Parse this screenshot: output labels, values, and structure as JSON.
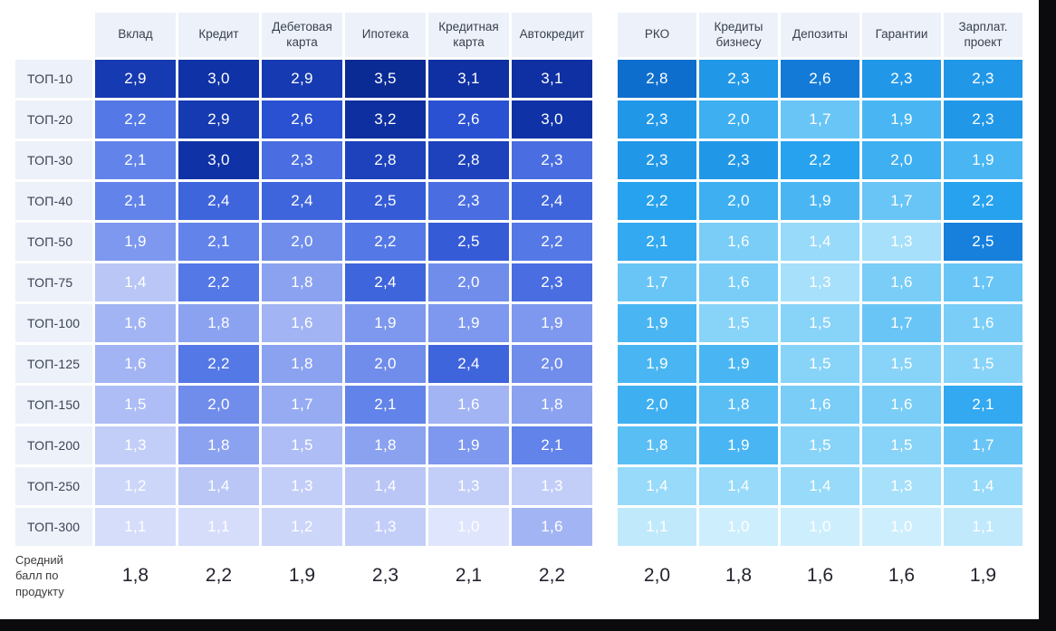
{
  "chart_data": {
    "type": "heatmap",
    "title": "",
    "decimal_separator": ",",
    "row_labels": [
      "ТОП-10",
      "ТОП-20",
      "ТОП-30",
      "ТОП-40",
      "ТОП-50",
      "ТОП-75",
      "ТОП-100",
      "ТОП-125",
      "ТОП-150",
      "ТОП-200",
      "ТОП-250",
      "ТОП-300"
    ],
    "average_row_label": "Средний балл по продукту",
    "groups": [
      {
        "name": "retail-products",
        "columns": [
          "Вклад",
          "Кредит",
          "Дебетовая карта",
          "Ипотека",
          "Кредитная карта",
          "Автокредит"
        ],
        "values": [
          [
            2.9,
            3.0,
            2.9,
            3.5,
            3.1,
            3.1
          ],
          [
            2.2,
            2.9,
            2.6,
            3.2,
            2.6,
            3.0
          ],
          [
            2.1,
            3.0,
            2.3,
            2.8,
            2.8,
            2.3
          ],
          [
            2.1,
            2.4,
            2.4,
            2.5,
            2.3,
            2.4
          ],
          [
            1.9,
            2.1,
            2.0,
            2.2,
            2.5,
            2.2
          ],
          [
            1.4,
            2.2,
            1.8,
            2.4,
            2.0,
            2.3
          ],
          [
            1.6,
            1.8,
            1.6,
            1.9,
            1.9,
            1.9
          ],
          [
            1.6,
            2.2,
            1.8,
            2.0,
            2.4,
            2.0
          ],
          [
            1.5,
            2.0,
            1.7,
            2.1,
            1.6,
            1.8
          ],
          [
            1.3,
            1.8,
            1.5,
            1.8,
            1.9,
            2.1
          ],
          [
            1.2,
            1.4,
            1.3,
            1.4,
            1.3,
            1.3
          ],
          [
            1.1,
            1.1,
            1.2,
            1.3,
            1.0,
            1.6
          ]
        ],
        "averages": [
          1.8,
          2.2,
          1.9,
          2.3,
          2.1,
          2.2
        ],
        "palette_stops": [
          [
            1.0,
            "#dfe5fc"
          ],
          [
            1.4,
            "#b9c6f6"
          ],
          [
            1.8,
            "#8ba2f0"
          ],
          [
            2.2,
            "#5478e6"
          ],
          [
            2.6,
            "#2a51d2"
          ],
          [
            3.0,
            "#0f32a6"
          ],
          [
            3.5,
            "#0a2a94"
          ]
        ]
      },
      {
        "name": "business-products",
        "columns": [
          "РКО",
          "Кредиты бизнесу",
          "Депозиты",
          "Гарантии",
          "Зарплат. проект"
        ],
        "values": [
          [
            2.8,
            2.3,
            2.6,
            2.3,
            2.3
          ],
          [
            2.3,
            2.0,
            1.7,
            1.9,
            2.3
          ],
          [
            2.3,
            2.3,
            2.2,
            2.0,
            1.9
          ],
          [
            2.2,
            2.0,
            1.9,
            1.7,
            2.2
          ],
          [
            2.1,
            1.6,
            1.4,
            1.3,
            2.5
          ],
          [
            1.7,
            1.6,
            1.3,
            1.6,
            1.7
          ],
          [
            1.9,
            1.5,
            1.5,
            1.7,
            1.6
          ],
          [
            1.9,
            1.9,
            1.5,
            1.5,
            1.5
          ],
          [
            2.0,
            1.8,
            1.6,
            1.6,
            2.1
          ],
          [
            1.8,
            1.9,
            1.5,
            1.5,
            1.7
          ],
          [
            1.4,
            1.4,
            1.4,
            1.3,
            1.4
          ],
          [
            1.1,
            1.0,
            1.0,
            1.0,
            1.1
          ]
        ],
        "averages": [
          2.0,
          1.8,
          1.6,
          1.6,
          1.9
        ],
        "palette_stops": [
          [
            1.0,
            "#cdeefd"
          ],
          [
            1.3,
            "#a6e0fa"
          ],
          [
            1.6,
            "#79cdf7"
          ],
          [
            1.9,
            "#49b6f3"
          ],
          [
            2.2,
            "#27a2ee"
          ],
          [
            2.5,
            "#1680dc"
          ],
          [
            2.8,
            "#0e6ecd"
          ]
        ]
      }
    ],
    "colors": {
      "header_bg": "#edf1f9",
      "cell_text": "#ffffff",
      "row_label_text": "#3a4254",
      "average_text": "#22242e",
      "page_edge": "#0b0b0d"
    }
  }
}
